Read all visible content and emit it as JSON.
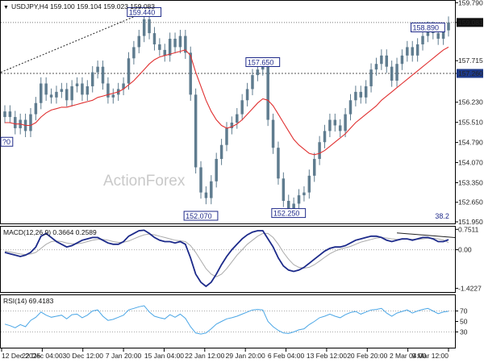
{
  "header": {
    "dropdown_symbol": "▼",
    "ohlc": "USDJPY,H4  159.100 159.104 159.023 159.083",
    "macd": "MACD(12,26,9) 0.3664 0.2589",
    "rsi": "RSI(14) 69.4183"
  },
  "watermark": "ActionForex",
  "colors": {
    "candle": "#5f7c8f",
    "ma": "#e03030",
    "macd": "#1c2a8a",
    "signal": "#aaaaaa",
    "rsi": "#4aa6e6",
    "trend": "#222222",
    "label_border": "#1f2a8a",
    "last_price_bg": "#111111",
    "level_bg": "#1e3a8a"
  },
  "icons": {
    "dropdown": "triangle-down-icon"
  },
  "chart_data": [
    {
      "type": "candlestick",
      "title": "USDJPY,H4",
      "ylim": [
        151.95,
        159.8
      ],
      "y_ticks": [
        159.79,
        159.083,
        157.715,
        157.26,
        156.23,
        155.51,
        154.79,
        154.07,
        153.35,
        152.65,
        151.95
      ],
      "x_ticks": [
        "12 Dec 2025",
        "22 Dec 04:00",
        "30 Dec 12:00",
        "7 Jan 20:00",
        "15 Jan 04:00",
        "22 Jan 12:00",
        "29 Jan 20:00",
        "6 Feb 04:00",
        "13 Feb 12:00",
        "20 Feb 20:00",
        "2 Mar 04:00",
        "9 Mar 12:00"
      ],
      "last_price": 159.083,
      "level_line": 157.26,
      "level_line_label": "157.260",
      "annotations": [
        {
          "label": "159.440",
          "value": 159.44,
          "index": 27
        },
        {
          "label": "157.650",
          "value": 157.65,
          "index": 50
        },
        {
          "label": "158.890",
          "value": 158.89,
          "index": 82
        },
        {
          "label": "152.070",
          "value": 152.07,
          "index": 38
        },
        {
          "label": "152.250",
          "value": 152.25,
          "index": 55
        },
        {
          "label": "38.2",
          "value": 152.0,
          "index": 88
        },
        {
          "label": "?0",
          "value": 154.8,
          "index": 0
        }
      ],
      "close": [
        155.9,
        155.7,
        155.3,
        155.6,
        155.2,
        155.8,
        156.2,
        156.9,
        156.5,
        156.4,
        156.6,
        156.7,
        156.3,
        156.8,
        156.9,
        156.5,
        156.8,
        157.3,
        157.5,
        156.9,
        156.4,
        156.5,
        156.7,
        156.9,
        157.8,
        158.2,
        158.6,
        159.2,
        158.7,
        158.3,
        158.1,
        157.9,
        158.5,
        158.2,
        158.6,
        158.0,
        156.5,
        153.9,
        153.0,
        152.8,
        153.4,
        154.2,
        154.7,
        155.3,
        155.5,
        155.8,
        156.3,
        156.7,
        157.2,
        157.4,
        157.5,
        155.6,
        154.6,
        153.5,
        152.7,
        152.4,
        152.6,
        152.9,
        153.0,
        153.6,
        154.2,
        154.8,
        155.2,
        155.6,
        155.4,
        155.2,
        155.8,
        156.3,
        156.6,
        156.4,
        156.8,
        157.4,
        157.6,
        157.9,
        157.5,
        157.0,
        157.6,
        157.9,
        158.2,
        157.9,
        158.3,
        158.6,
        158.9,
        158.7,
        158.5,
        158.8,
        159.08
      ],
      "ma_values": [
        155.5,
        155.5,
        155.45,
        155.45,
        155.4,
        155.4,
        155.5,
        155.7,
        155.85,
        155.95,
        156.0,
        156.05,
        156.05,
        156.1,
        156.15,
        156.2,
        156.25,
        156.3,
        156.4,
        156.45,
        156.5,
        156.55,
        156.6,
        156.7,
        156.85,
        157.0,
        157.2,
        157.4,
        157.6,
        157.75,
        157.85,
        157.9,
        157.95,
        158.0,
        158.05,
        158.1,
        157.9,
        157.3,
        156.8,
        156.3,
        155.9,
        155.6,
        155.4,
        155.3,
        155.35,
        155.45,
        155.6,
        155.8,
        156.0,
        156.2,
        156.35,
        156.3,
        156.1,
        155.8,
        155.5,
        155.2,
        154.9,
        154.7,
        154.55,
        154.4,
        154.35,
        154.4,
        154.5,
        154.65,
        154.8,
        154.95,
        155.1,
        155.3,
        155.5,
        155.65,
        155.8,
        155.95,
        156.1,
        156.3,
        156.45,
        156.6,
        156.75,
        156.9,
        157.05,
        157.2,
        157.35,
        157.5,
        157.65,
        157.8,
        157.95,
        158.1,
        158.2
      ]
    },
    {
      "type": "line",
      "title": "MACD(12,26,9)",
      "ylim": [
        -1.5,
        0.82
      ],
      "y_ticks": [
        0.7511,
        0.0,
        -1.4227
      ],
      "y_tick_labels": [
        "0.7511",
        "0.00",
        "-1.4227"
      ],
      "series": [
        {
          "name": "MACD",
          "values": [
            -0.1,
            -0.15,
            -0.2,
            -0.25,
            -0.2,
            -0.1,
            0.1,
            0.5,
            0.6,
            0.45,
            0.3,
            0.2,
            0.1,
            0.15,
            0.25,
            0.35,
            0.4,
            0.45,
            0.45,
            0.35,
            0.25,
            0.2,
            0.2,
            0.3,
            0.5,
            0.6,
            0.7,
            0.72,
            0.6,
            0.45,
            0.35,
            0.3,
            0.3,
            0.25,
            0.3,
            0.2,
            -0.3,
            -0.9,
            -1.2,
            -1.35,
            -1.2,
            -0.9,
            -0.55,
            -0.25,
            0.0,
            0.2,
            0.4,
            0.55,
            0.65,
            0.7,
            0.7,
            0.4,
            0.1,
            -0.3,
            -0.6,
            -0.75,
            -0.8,
            -0.75,
            -0.65,
            -0.5,
            -0.35,
            -0.2,
            -0.05,
            0.05,
            0.1,
            0.1,
            0.15,
            0.25,
            0.35,
            0.4,
            0.45,
            0.5,
            0.5,
            0.45,
            0.35,
            0.3,
            0.35,
            0.4,
            0.4,
            0.35,
            0.4,
            0.45,
            0.45,
            0.4,
            0.3,
            0.3,
            0.37
          ]
        },
        {
          "name": "Signal",
          "values": [
            -0.05,
            -0.08,
            -0.12,
            -0.16,
            -0.18,
            -0.16,
            -0.1,
            0.05,
            0.2,
            0.3,
            0.32,
            0.3,
            0.25,
            0.22,
            0.22,
            0.25,
            0.3,
            0.35,
            0.38,
            0.38,
            0.35,
            0.3,
            0.27,
            0.28,
            0.32,
            0.4,
            0.48,
            0.55,
            0.58,
            0.55,
            0.5,
            0.45,
            0.4,
            0.35,
            0.33,
            0.3,
            0.15,
            -0.1,
            -0.4,
            -0.7,
            -0.9,
            -1.0,
            -0.9,
            -0.7,
            -0.45,
            -0.2,
            0.0,
            0.2,
            0.35,
            0.5,
            0.6,
            0.6,
            0.45,
            0.2,
            -0.1,
            -0.35,
            -0.55,
            -0.65,
            -0.68,
            -0.65,
            -0.55,
            -0.42,
            -0.28,
            -0.15,
            -0.05,
            0.02,
            0.07,
            0.12,
            0.2,
            0.28,
            0.33,
            0.38,
            0.43,
            0.45,
            0.43,
            0.4,
            0.38,
            0.38,
            0.39,
            0.38,
            0.38,
            0.4,
            0.42,
            0.42,
            0.4,
            0.36,
            0.26
          ]
        }
      ]
    },
    {
      "type": "line",
      "title": "RSI(14)",
      "ylim": [
        0,
        100
      ],
      "y_ticks": [
        70,
        50,
        30
      ],
      "series": [
        {
          "name": "RSI(14)",
          "values": [
            45,
            42,
            38,
            44,
            40,
            52,
            58,
            68,
            62,
            58,
            60,
            62,
            55,
            63,
            64,
            57,
            62,
            70,
            72,
            60,
            52,
            54,
            58,
            62,
            72,
            75,
            78,
            80,
            68,
            60,
            57,
            55,
            63,
            58,
            64,
            56,
            40,
            28,
            26,
            28,
            36,
            45,
            50,
            55,
            57,
            60,
            64,
            68,
            72,
            73,
            72,
            50,
            40,
            33,
            28,
            27,
            30,
            34,
            36,
            44,
            50,
            57,
            60,
            64,
            60,
            57,
            63,
            67,
            69,
            64,
            68,
            72,
            73,
            75,
            66,
            60,
            66,
            69,
            72,
            66,
            70,
            73,
            75,
            70,
            65,
            68,
            69.4
          ]
        }
      ]
    }
  ]
}
